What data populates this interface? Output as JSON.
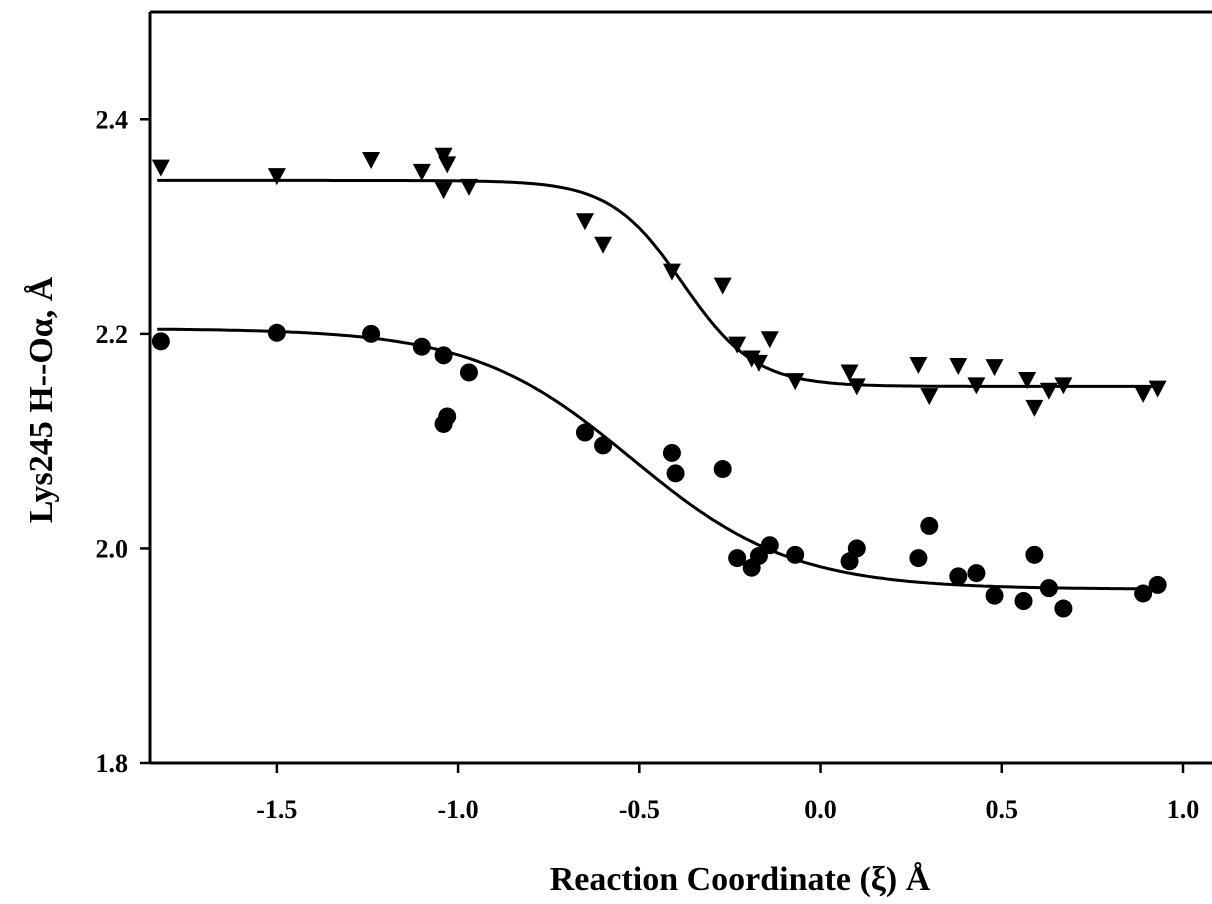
{
  "chart_data": {
    "type": "scatter",
    "xlabel": "Reaction Coordinate (ξ) Å",
    "ylabel": "Lys245 H--Oα, Å",
    "xlim": [
      -1.85,
      1.08
    ],
    "ylim": [
      1.8,
      2.5
    ],
    "xticks": [
      -1.5,
      -1.0,
      -0.5,
      0.0,
      0.5,
      1.0
    ],
    "xtick_labels": [
      "-1.5",
      "-1.0",
      "-0.5",
      "0.0",
      "0.5",
      "1.0"
    ],
    "yticks": [
      1.8,
      2.0,
      2.2,
      2.4
    ],
    "ytick_labels": [
      "1.8",
      "2.0",
      "2.2",
      "2.4"
    ],
    "grid": false,
    "legend": "none",
    "series": [
      {
        "marker": "triangle-down",
        "color": "#000000",
        "points": [
          [
            -1.82,
            2.355
          ],
          [
            -1.5,
            2.347
          ],
          [
            -1.24,
            2.362
          ],
          [
            -1.1,
            2.351
          ],
          [
            -1.04,
            2.366
          ],
          [
            -1.03,
            2.358
          ],
          [
            -1.04,
            2.334
          ],
          [
            -0.97,
            2.337
          ],
          [
            -0.65,
            2.305
          ],
          [
            -0.6,
            2.283
          ],
          [
            -0.41,
            2.258
          ],
          [
            -0.27,
            2.245
          ],
          [
            -0.23,
            2.19
          ],
          [
            -0.19,
            2.177
          ],
          [
            -0.17,
            2.173
          ],
          [
            -0.14,
            2.195
          ],
          [
            -0.07,
            2.156
          ],
          [
            0.08,
            2.164
          ],
          [
            0.1,
            2.151
          ],
          [
            0.27,
            2.171
          ],
          [
            0.3,
            2.142
          ],
          [
            0.38,
            2.17
          ],
          [
            0.43,
            2.152
          ],
          [
            0.48,
            2.169
          ],
          [
            0.57,
            2.157
          ],
          [
            0.59,
            2.131
          ],
          [
            0.63,
            2.147
          ],
          [
            0.67,
            2.152
          ],
          [
            0.89,
            2.144
          ],
          [
            0.93,
            2.149
          ]
        ],
        "fit": {
          "type": "sigmoid",
          "top": 2.343,
          "bottom": 2.151,
          "x0": -0.38,
          "slope": 0.1
        }
      },
      {
        "marker": "circle",
        "color": "#000000",
        "points": [
          [
            -1.82,
            2.193
          ],
          [
            -1.5,
            2.201
          ],
          [
            -1.24,
            2.2
          ],
          [
            -1.1,
            2.188
          ],
          [
            -1.04,
            2.18
          ],
          [
            -1.03,
            2.123
          ],
          [
            -1.04,
            2.116
          ],
          [
            -0.97,
            2.164
          ],
          [
            -0.65,
            2.108
          ],
          [
            -0.6,
            2.096
          ],
          [
            -0.41,
            2.089
          ],
          [
            -0.4,
            2.07
          ],
          [
            -0.27,
            2.074
          ],
          [
            -0.23,
            1.991
          ],
          [
            -0.19,
            1.982
          ],
          [
            -0.17,
            1.993
          ],
          [
            -0.14,
            2.003
          ],
          [
            -0.07,
            1.994
          ],
          [
            0.08,
            1.988
          ],
          [
            0.1,
            2.0
          ],
          [
            0.27,
            1.991
          ],
          [
            0.3,
            2.021
          ],
          [
            0.38,
            1.974
          ],
          [
            0.43,
            1.977
          ],
          [
            0.48,
            1.956
          ],
          [
            0.56,
            1.951
          ],
          [
            0.59,
            1.994
          ],
          [
            0.63,
            1.963
          ],
          [
            0.67,
            1.944
          ],
          [
            0.89,
            1.958
          ],
          [
            0.93,
            1.966
          ]
        ],
        "fit": {
          "type": "sigmoid",
          "top": 2.205,
          "bottom": 1.962,
          "x0": -0.52,
          "slope": 0.22
        }
      }
    ]
  }
}
